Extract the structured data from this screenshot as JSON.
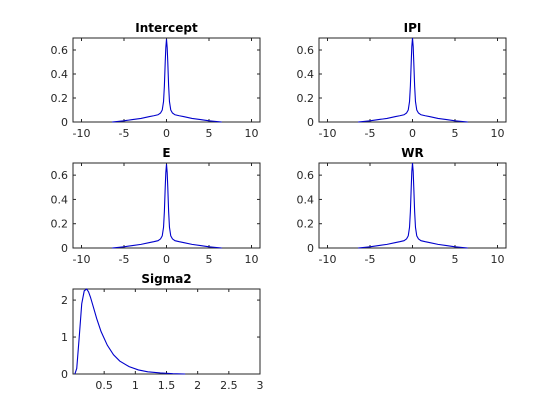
{
  "chart_data": [
    {
      "type": "line",
      "title": "Intercept",
      "xlim": [
        -11,
        11
      ],
      "ylim": [
        0,
        0.7
      ],
      "xticks": [
        -10,
        -5,
        0,
        5,
        10
      ],
      "yticks": [
        0,
        0.2,
        0.4,
        0.6
      ],
      "xtick_labels": [
        "-10",
        "-5",
        "0",
        "5",
        "10"
      ],
      "ytick_labels": [
        "0",
        "0.2",
        "0.4",
        "0.6"
      ],
      "series": [
        {
          "color": "#0000cc",
          "x": [
            -6.4,
            -5,
            -4,
            -3,
            -2,
            -1.5,
            -1,
            -0.7,
            -0.5,
            -0.35,
            -0.25,
            -0.15,
            -0.08,
            0,
            0.08,
            0.15,
            0.25,
            0.35,
            0.5,
            0.7,
            1,
            1.5,
            2,
            3,
            4,
            5,
            6.5
          ],
          "y": [
            0.0,
            0.01,
            0.02,
            0.03,
            0.045,
            0.052,
            0.06,
            0.075,
            0.1,
            0.17,
            0.3,
            0.5,
            0.62,
            0.69,
            0.62,
            0.5,
            0.3,
            0.17,
            0.1,
            0.075,
            0.06,
            0.052,
            0.045,
            0.03,
            0.02,
            0.01,
            0.0
          ]
        }
      ]
    },
    {
      "type": "line",
      "title": "IPI",
      "xlim": [
        -11,
        11
      ],
      "ylim": [
        0,
        0.7
      ],
      "xticks": [
        -10,
        -5,
        0,
        5,
        10
      ],
      "yticks": [
        0,
        0.2,
        0.4,
        0.6
      ],
      "xtick_labels": [
        "-10",
        "-5",
        "0",
        "5",
        "10"
      ],
      "ytick_labels": [
        "0",
        "0.2",
        "0.4",
        "0.6"
      ],
      "series": [
        {
          "color": "#0000cc",
          "x": [
            -6.4,
            -5,
            -4,
            -3,
            -2,
            -1.5,
            -1,
            -0.7,
            -0.5,
            -0.35,
            -0.25,
            -0.15,
            -0.08,
            0,
            0.08,
            0.15,
            0.25,
            0.35,
            0.5,
            0.7,
            1,
            1.5,
            2,
            3,
            4,
            5,
            6.5
          ],
          "y": [
            0.0,
            0.01,
            0.02,
            0.03,
            0.045,
            0.052,
            0.06,
            0.075,
            0.1,
            0.17,
            0.3,
            0.5,
            0.63,
            0.7,
            0.63,
            0.5,
            0.3,
            0.17,
            0.1,
            0.075,
            0.06,
            0.052,
            0.045,
            0.03,
            0.02,
            0.01,
            0.0
          ]
        }
      ]
    },
    {
      "type": "line",
      "title": "E",
      "xlim": [
        -11,
        11
      ],
      "ylim": [
        0,
        0.7
      ],
      "xticks": [
        -10,
        -5,
        0,
        5,
        10
      ],
      "yticks": [
        0,
        0.2,
        0.4,
        0.6
      ],
      "xtick_labels": [
        "-10",
        "-5",
        "0",
        "5",
        "10"
      ],
      "ytick_labels": [
        "0",
        "0.2",
        "0.4",
        "0.6"
      ],
      "series": [
        {
          "color": "#0000cc",
          "x": [
            -6.4,
            -5,
            -4,
            -3,
            -2,
            -1.5,
            -1,
            -0.7,
            -0.5,
            -0.35,
            -0.25,
            -0.15,
            -0.08,
            0,
            0.08,
            0.15,
            0.25,
            0.35,
            0.5,
            0.7,
            1,
            1.5,
            2,
            3,
            4,
            5,
            6.5
          ],
          "y": [
            0.0,
            0.01,
            0.02,
            0.03,
            0.045,
            0.052,
            0.06,
            0.075,
            0.1,
            0.17,
            0.3,
            0.5,
            0.62,
            0.69,
            0.62,
            0.5,
            0.3,
            0.17,
            0.1,
            0.075,
            0.06,
            0.052,
            0.045,
            0.03,
            0.02,
            0.01,
            0.0
          ]
        }
      ]
    },
    {
      "type": "line",
      "title": "WR",
      "xlim": [
        -11,
        11
      ],
      "ylim": [
        0,
        0.7
      ],
      "xticks": [
        -10,
        -5,
        0,
        5,
        10
      ],
      "yticks": [
        0,
        0.2,
        0.4,
        0.6
      ],
      "xtick_labels": [
        "-10",
        "-5",
        "0",
        "5",
        "10"
      ],
      "ytick_labels": [
        "0",
        "0.2",
        "0.4",
        "0.6"
      ],
      "series": [
        {
          "color": "#0000cc",
          "x": [
            -6.4,
            -5,
            -4,
            -3,
            -2,
            -1.5,
            -1,
            -0.7,
            -0.5,
            -0.35,
            -0.25,
            -0.15,
            -0.08,
            0,
            0.08,
            0.15,
            0.25,
            0.35,
            0.5,
            0.7,
            1,
            1.5,
            2,
            3,
            4,
            5,
            6.5
          ],
          "y": [
            0.0,
            0.01,
            0.02,
            0.03,
            0.045,
            0.052,
            0.06,
            0.075,
            0.1,
            0.17,
            0.3,
            0.5,
            0.63,
            0.7,
            0.63,
            0.5,
            0.3,
            0.17,
            0.1,
            0.075,
            0.06,
            0.052,
            0.045,
            0.03,
            0.02,
            0.01,
            0.0
          ]
        }
      ]
    },
    {
      "type": "line",
      "title": "Sigma2",
      "xlim": [
        0,
        3
      ],
      "ylim": [
        0,
        2.3
      ],
      "xticks": [
        0.5,
        1,
        1.5,
        2,
        2.5,
        3
      ],
      "yticks": [
        0,
        1,
        2
      ],
      "xtick_labels": [
        "0.5",
        "1",
        "1.5",
        "2",
        "2.5",
        "3"
      ],
      "ytick_labels": [
        "0",
        "1",
        "2"
      ],
      "series": [
        {
          "color": "#0000cc",
          "x": [
            0.03,
            0.06,
            0.1,
            0.14,
            0.18,
            0.22,
            0.25,
            0.28,
            0.32,
            0.38,
            0.45,
            0.55,
            0.65,
            0.75,
            0.9,
            1.05,
            1.2,
            1.4,
            1.6,
            1.8
          ],
          "y": [
            0.0,
            0.15,
            1.0,
            1.9,
            2.25,
            2.3,
            2.22,
            2.08,
            1.85,
            1.5,
            1.15,
            0.78,
            0.52,
            0.35,
            0.2,
            0.11,
            0.06,
            0.03,
            0.01,
            0.0
          ]
        }
      ]
    }
  ]
}
